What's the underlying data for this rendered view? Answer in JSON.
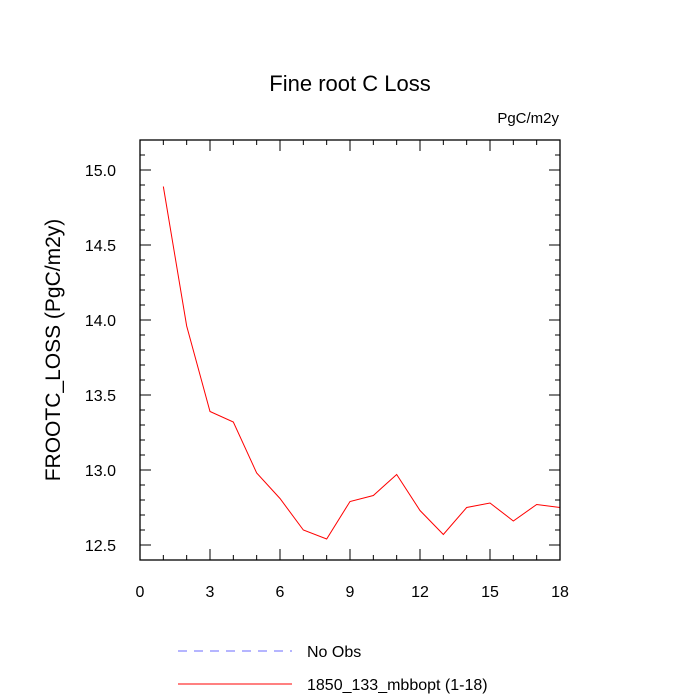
{
  "chart_data": {
    "type": "line",
    "title": "Fine root C Loss",
    "units_label": "PgC/m2y",
    "ylabel": "FROOTC_LOSS  (PgC/m2y)",
    "xlabel": "",
    "xlim": [
      0,
      18
    ],
    "ylim": [
      12.4,
      15.2
    ],
    "xticks": [
      0,
      3,
      6,
      9,
      12,
      15,
      18
    ],
    "xtick_labels": [
      "0",
      "3",
      "6",
      "9",
      "12",
      "15",
      "18"
    ],
    "yticks": [
      12.5,
      13.0,
      13.5,
      14.0,
      14.5,
      15.0
    ],
    "ytick_labels": [
      "12.5",
      "13.0",
      "13.5",
      "14.0",
      "14.5",
      "15.0"
    ],
    "grid": false,
    "legend_position": "bottom",
    "series": [
      {
        "name": "No Obs",
        "color": "#6b6bff",
        "dash": "dashed",
        "x": [],
        "y": []
      },
      {
        "name": "1850_133_mbbopt (1-18)",
        "color": "#ff0000",
        "dash": "solid",
        "x": [
          1,
          2,
          3,
          4,
          5,
          6,
          7,
          8,
          9,
          10,
          11,
          12,
          13,
          14,
          15,
          16,
          17,
          18
        ],
        "y": [
          14.89,
          13.96,
          13.39,
          13.32,
          12.98,
          12.81,
          12.6,
          12.54,
          12.79,
          12.83,
          12.97,
          12.73,
          12.57,
          12.75,
          12.78,
          12.66,
          12.77,
          12.75
        ]
      }
    ]
  }
}
